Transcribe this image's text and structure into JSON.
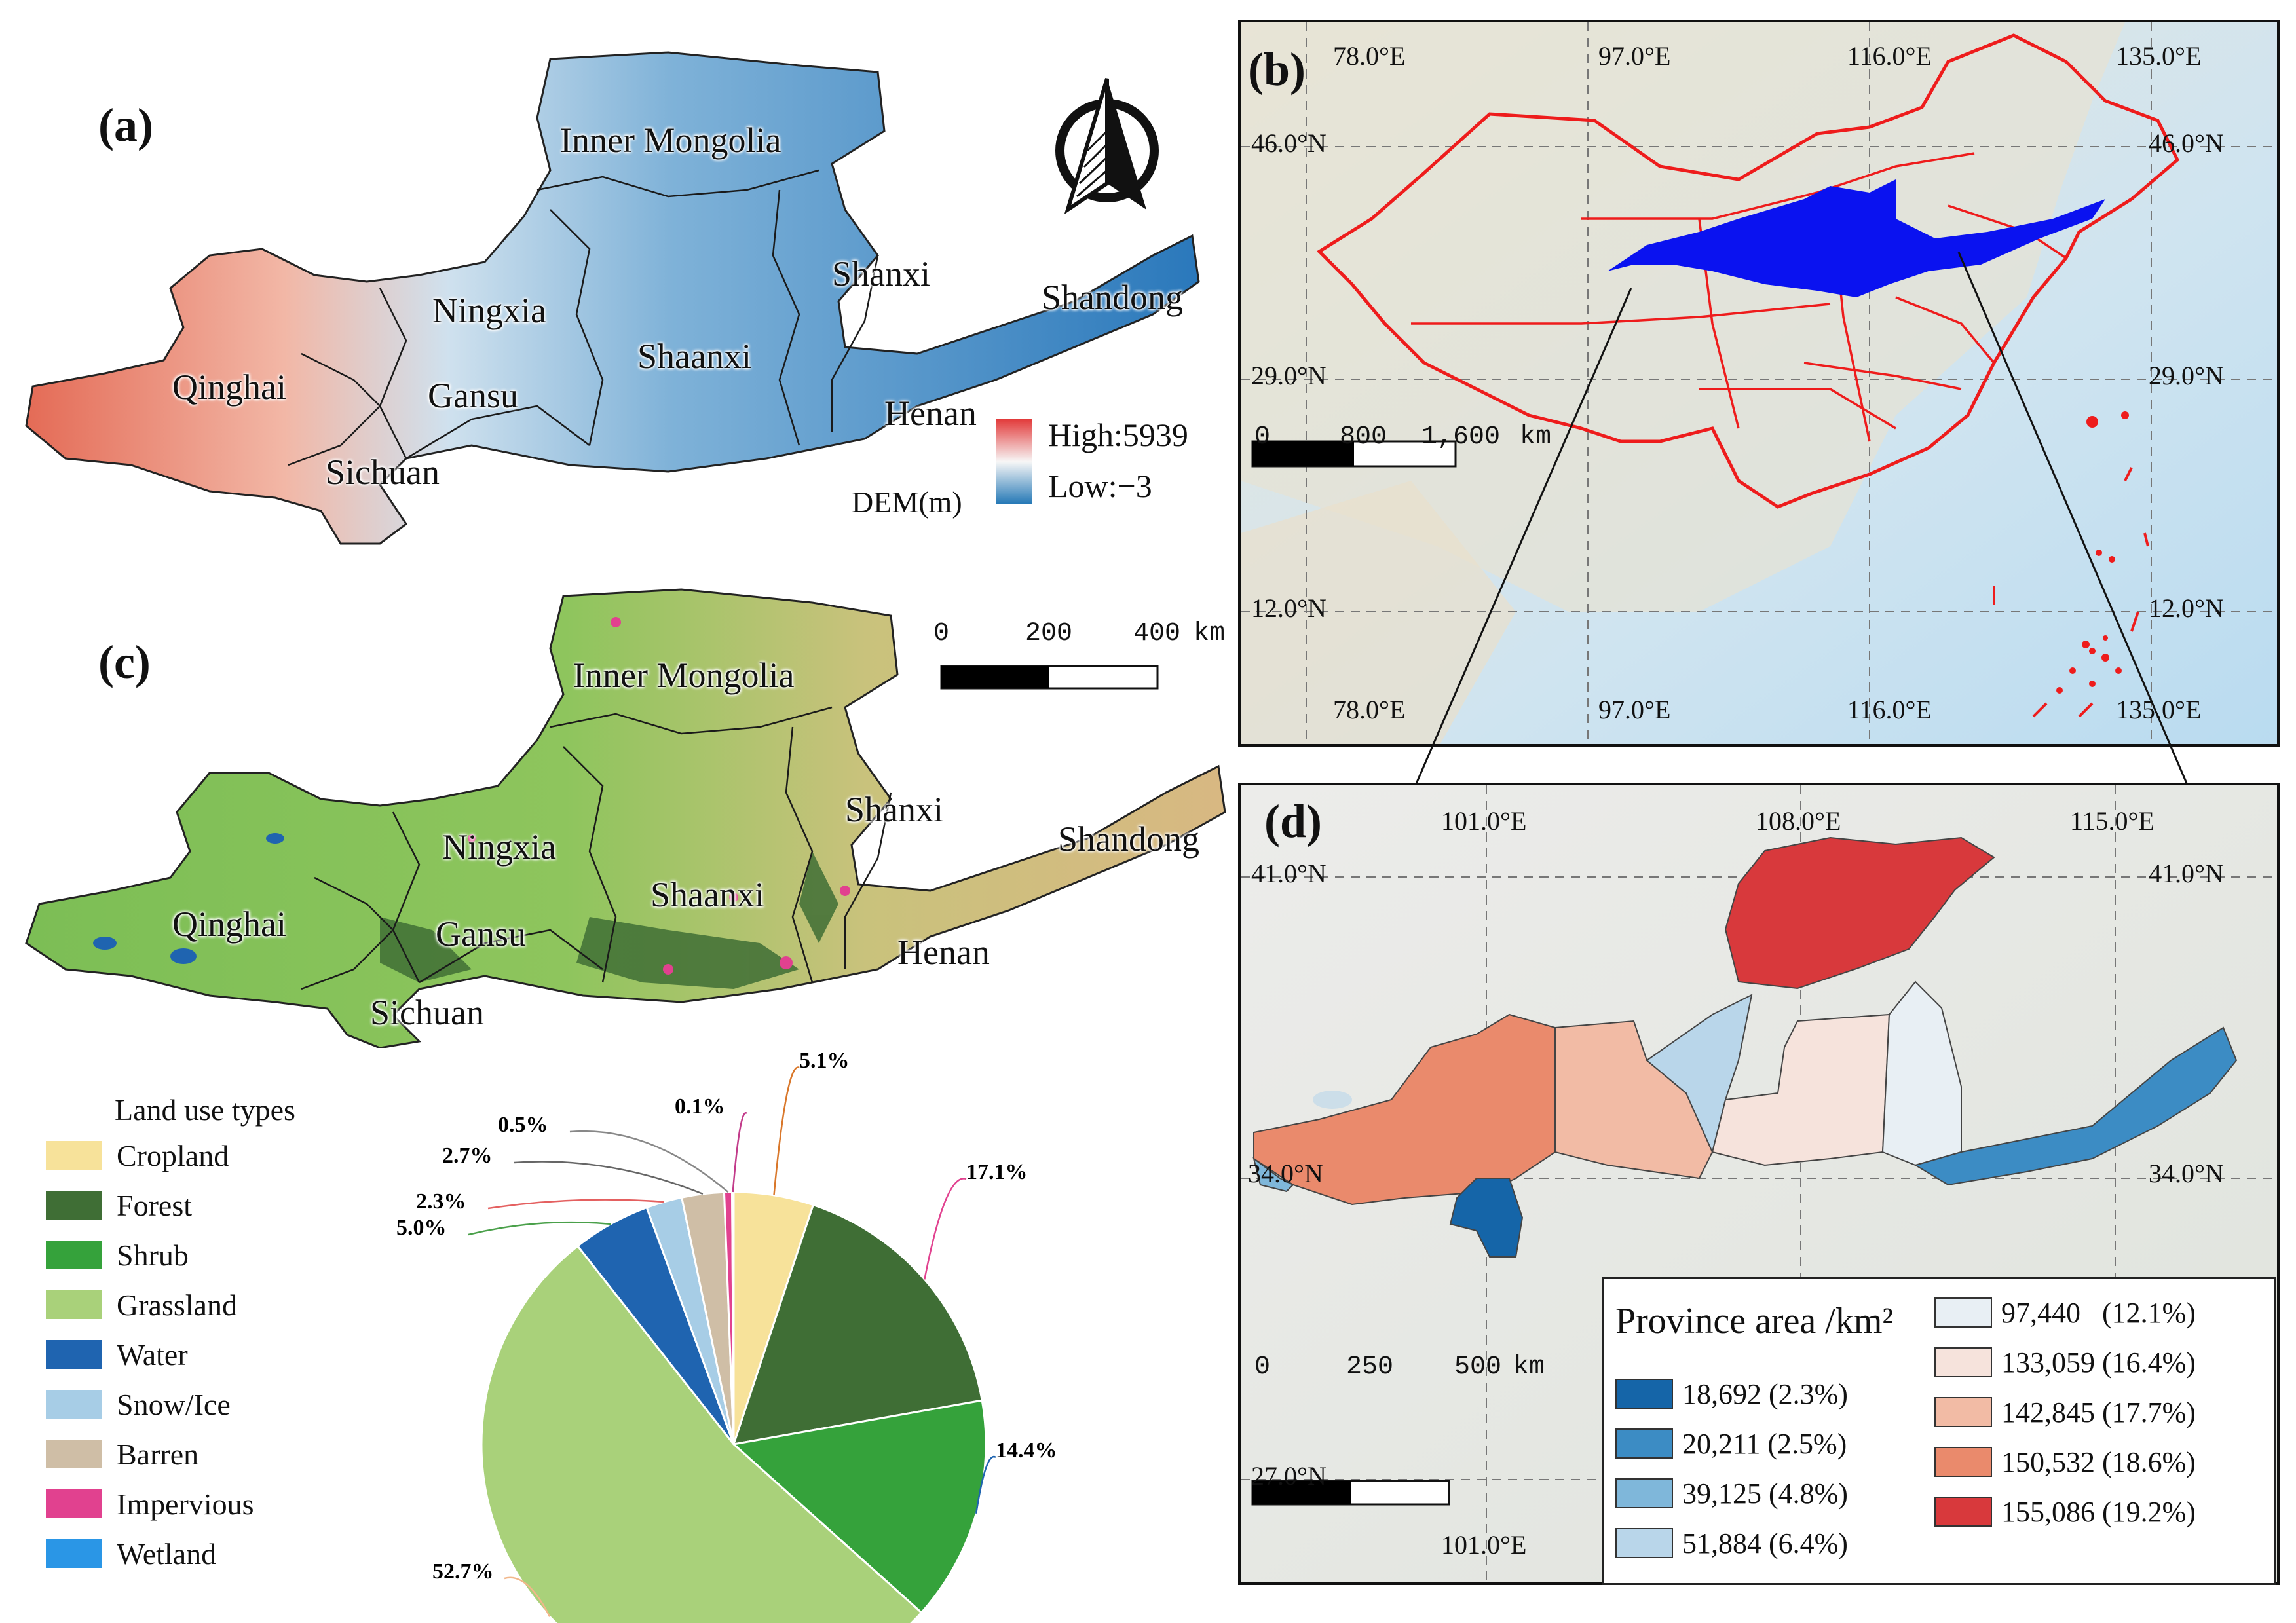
{
  "panels": {
    "a": "(a)",
    "b": "(b)",
    "c": "(c)",
    "d": "(d)"
  },
  "panel_a": {
    "provinces": [
      "Inner Mongolia",
      "Shanxi",
      "Shandong",
      "Ningxia",
      "Shaanxi",
      "Gansu",
      "Qinghai",
      "Henan",
      "Sichuan"
    ],
    "legend": {
      "high": "High:5939",
      "low": "Low:−3",
      "title": "DEM(m)"
    },
    "colors": {
      "high": "#e84a4a",
      "mid": "#f4f4f4",
      "low": "#2a7ab8"
    }
  },
  "panel_b": {
    "lon_top": [
      "78.0°E",
      "97.0°E",
      "116.0°E",
      "135.0°E"
    ],
    "lon_bottom": [
      "78.0°E",
      "97.0°E",
      "116.0°E",
      "135.0°E"
    ],
    "lat_left": [
      "46.0°N",
      "29.0°N",
      "12.0°N"
    ],
    "lat_right": [
      "46.0°N",
      "29.0°N",
      "12.0°N"
    ],
    "scale": {
      "t0": "0",
      "t1": "800",
      "t2": "1,600",
      "unit": "km"
    },
    "colors": {
      "boundary": "#ee1c1c",
      "basin": "#0a12f0"
    }
  },
  "panel_c": {
    "provinces": [
      "Inner Mongolia",
      "Shanxi",
      "Shandong",
      "Ningxia",
      "Shaanxi",
      "Gansu",
      "Qinghai",
      "Henan",
      "Sichuan"
    ],
    "scale": {
      "t0": "0",
      "t1": "200",
      "t2": "400",
      "unit": "km"
    }
  },
  "land_use": {
    "title": "Land use types",
    "types": [
      {
        "name": "Cropland",
        "color": "#f7e29a",
        "percent": "5.1%",
        "value": 5.1
      },
      {
        "name": "Forest",
        "color": "#3f6e35",
        "percent": "17.1%",
        "value": 17.1
      },
      {
        "name": "Shrub",
        "color": "#35a23b",
        "percent": "14.4%",
        "value": 14.4
      },
      {
        "name": "Grassland",
        "color": "#a9d17a",
        "percent": "52.7%",
        "value": 52.7
      },
      {
        "name": "Water",
        "color": "#1f64b0",
        "percent": "5.0%",
        "value": 5.0
      },
      {
        "name": "Snow/Ice",
        "color": "#a7cde6",
        "percent": "2.3%",
        "value": 2.3
      },
      {
        "name": "Barren",
        "color": "#cfbea6",
        "percent": "2.7%",
        "value": 2.7
      },
      {
        "name": "Impervious",
        "color": "#e1418f",
        "percent": "0.5%",
        "value": 0.5
      },
      {
        "name": "Wetland",
        "color": "#2a96e6",
        "percent": "0.1%",
        "value": 0.1
      }
    ]
  },
  "chart_data": {
    "type": "pie",
    "categories": [
      "Cropland",
      "Forest",
      "Shrub",
      "Grassland",
      "Water",
      "Snow/Ice",
      "Barren",
      "Impervious",
      "Wetland"
    ],
    "values": [
      5.1,
      17.1,
      14.4,
      52.7,
      5.0,
      2.3,
      2.7,
      0.5,
      0.1
    ],
    "labels": [
      "5.1%",
      "17.1%",
      "14.4%",
      "52.7%",
      "5.0%",
      "2.3%",
      "2.7%",
      "0.5%",
      "0.1%"
    ]
  },
  "panel_d": {
    "lon_top": [
      "101.0°E",
      "108.0°E",
      "115.0°E"
    ],
    "lon_bottom": [
      "101.0°E"
    ],
    "lat_left": [
      "41.0°N",
      "34.0°N",
      "27.0°N"
    ],
    "lat_right": [
      "41.0°N",
      "34.0°N"
    ],
    "scale": {
      "t0": "0",
      "t1": "250",
      "t2": "500",
      "unit": "km"
    },
    "legend_title": "Province area /km²",
    "classes": [
      {
        "label": "18,692 (2.3%)",
        "color": "#1565a8"
      },
      {
        "label": "20,211 (2.5%)",
        "color": "#3c8cc4"
      },
      {
        "label": "39,125 (4.8%)",
        "color": "#7fb7da"
      },
      {
        "label": "51,884 (6.4%)",
        "color": "#b9d6ea"
      },
      {
        "label": "97,440   (12.1%)",
        "color": "#e8eff4"
      },
      {
        "label": "133,059 (16.4%)",
        "color": "#f6e3dc"
      },
      {
        "label": "142,845 (17.7%)",
        "color": "#f2bba5"
      },
      {
        "label": "150,532 (18.6%)",
        "color": "#ea8a6c"
      },
      {
        "label": "155,086 (19.2%)",
        "color": "#d8393c"
      }
    ]
  }
}
